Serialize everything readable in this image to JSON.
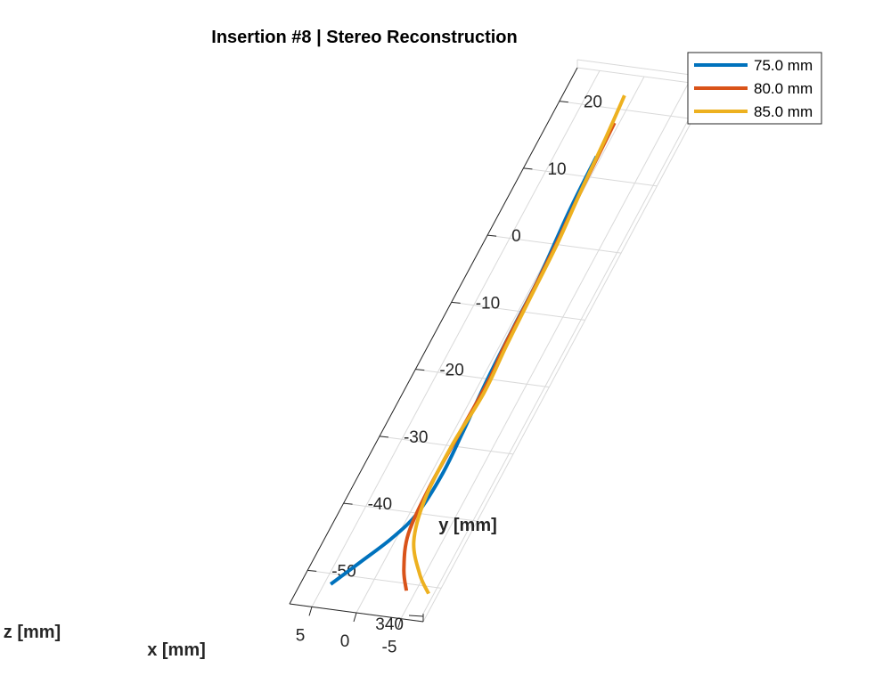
{
  "chart_data": {
    "type": "line",
    "projection": "3d",
    "title": "Insertion #8 | Stereo Reconstruction",
    "xlabel": "x [mm]",
    "ylabel": "y [mm]",
    "zlabel": "z [mm]",
    "x_ticks": [
      "-5",
      "0",
      "5"
    ],
    "y_ticks": [
      "20",
      "10",
      "0",
      "-10",
      "-20",
      "-30",
      "-40",
      "-50"
    ],
    "z_ticks": [
      "340"
    ],
    "grid": true,
    "legend_position": "top-right",
    "series": [
      {
        "name": "75.0 mm",
        "color": "#0072BD",
        "points": [
          {
            "x": 0.5,
            "y": 13.0
          },
          {
            "x": 0.3,
            "y": 5.0
          },
          {
            "x": -0.3,
            "y": -5.0
          },
          {
            "x": -0.4,
            "y": -12.0
          },
          {
            "x": -0.6,
            "y": -20.0
          },
          {
            "x": -1.0,
            "y": -28.0
          },
          {
            "x": -1.2,
            "y": -34.0
          },
          {
            "x": -0.8,
            "y": -40.0
          },
          {
            "x": 0.5,
            "y": -44.0
          },
          {
            "x": 2.5,
            "y": -48.0
          },
          {
            "x": 4.3,
            "y": -51.5
          }
        ]
      },
      {
        "name": "80.0 mm",
        "color": "#D95319",
        "points": [
          {
            "x": 0.5,
            "y": 18.0
          },
          {
            "x": 0.2,
            "y": 8.0
          },
          {
            "x": -0.2,
            "y": 0.0
          },
          {
            "x": -0.4,
            "y": -8.0
          },
          {
            "x": -0.5,
            "y": -15.0
          },
          {
            "x": -0.8,
            "y": -20.0
          },
          {
            "x": -0.7,
            "y": -28.0
          },
          {
            "x": -0.6,
            "y": -36.0
          },
          {
            "x": -1.0,
            "y": -43.0
          },
          {
            "x": -2.5,
            "y": -48.0
          },
          {
            "x": -4.0,
            "y": -51.0
          }
        ]
      },
      {
        "name": "85.0 mm",
        "color": "#EDB120",
        "points": [
          {
            "x": 1.0,
            "y": 22.0
          },
          {
            "x": 0.6,
            "y": 16.0
          },
          {
            "x": 0.2,
            "y": 8.0
          },
          {
            "x": -0.3,
            "y": 0.0
          },
          {
            "x": -0.5,
            "y": -8.0
          },
          {
            "x": -0.7,
            "y": -15.0
          },
          {
            "x": -1.0,
            "y": -22.0
          },
          {
            "x": -0.6,
            "y": -30.0
          },
          {
            "x": -0.8,
            "y": -38.0
          },
          {
            "x": -2.0,
            "y": -44.0
          },
          {
            "x": -4.5,
            "y": -48.5
          },
          {
            "x": -6.5,
            "y": -51.0
          }
        ]
      }
    ]
  }
}
